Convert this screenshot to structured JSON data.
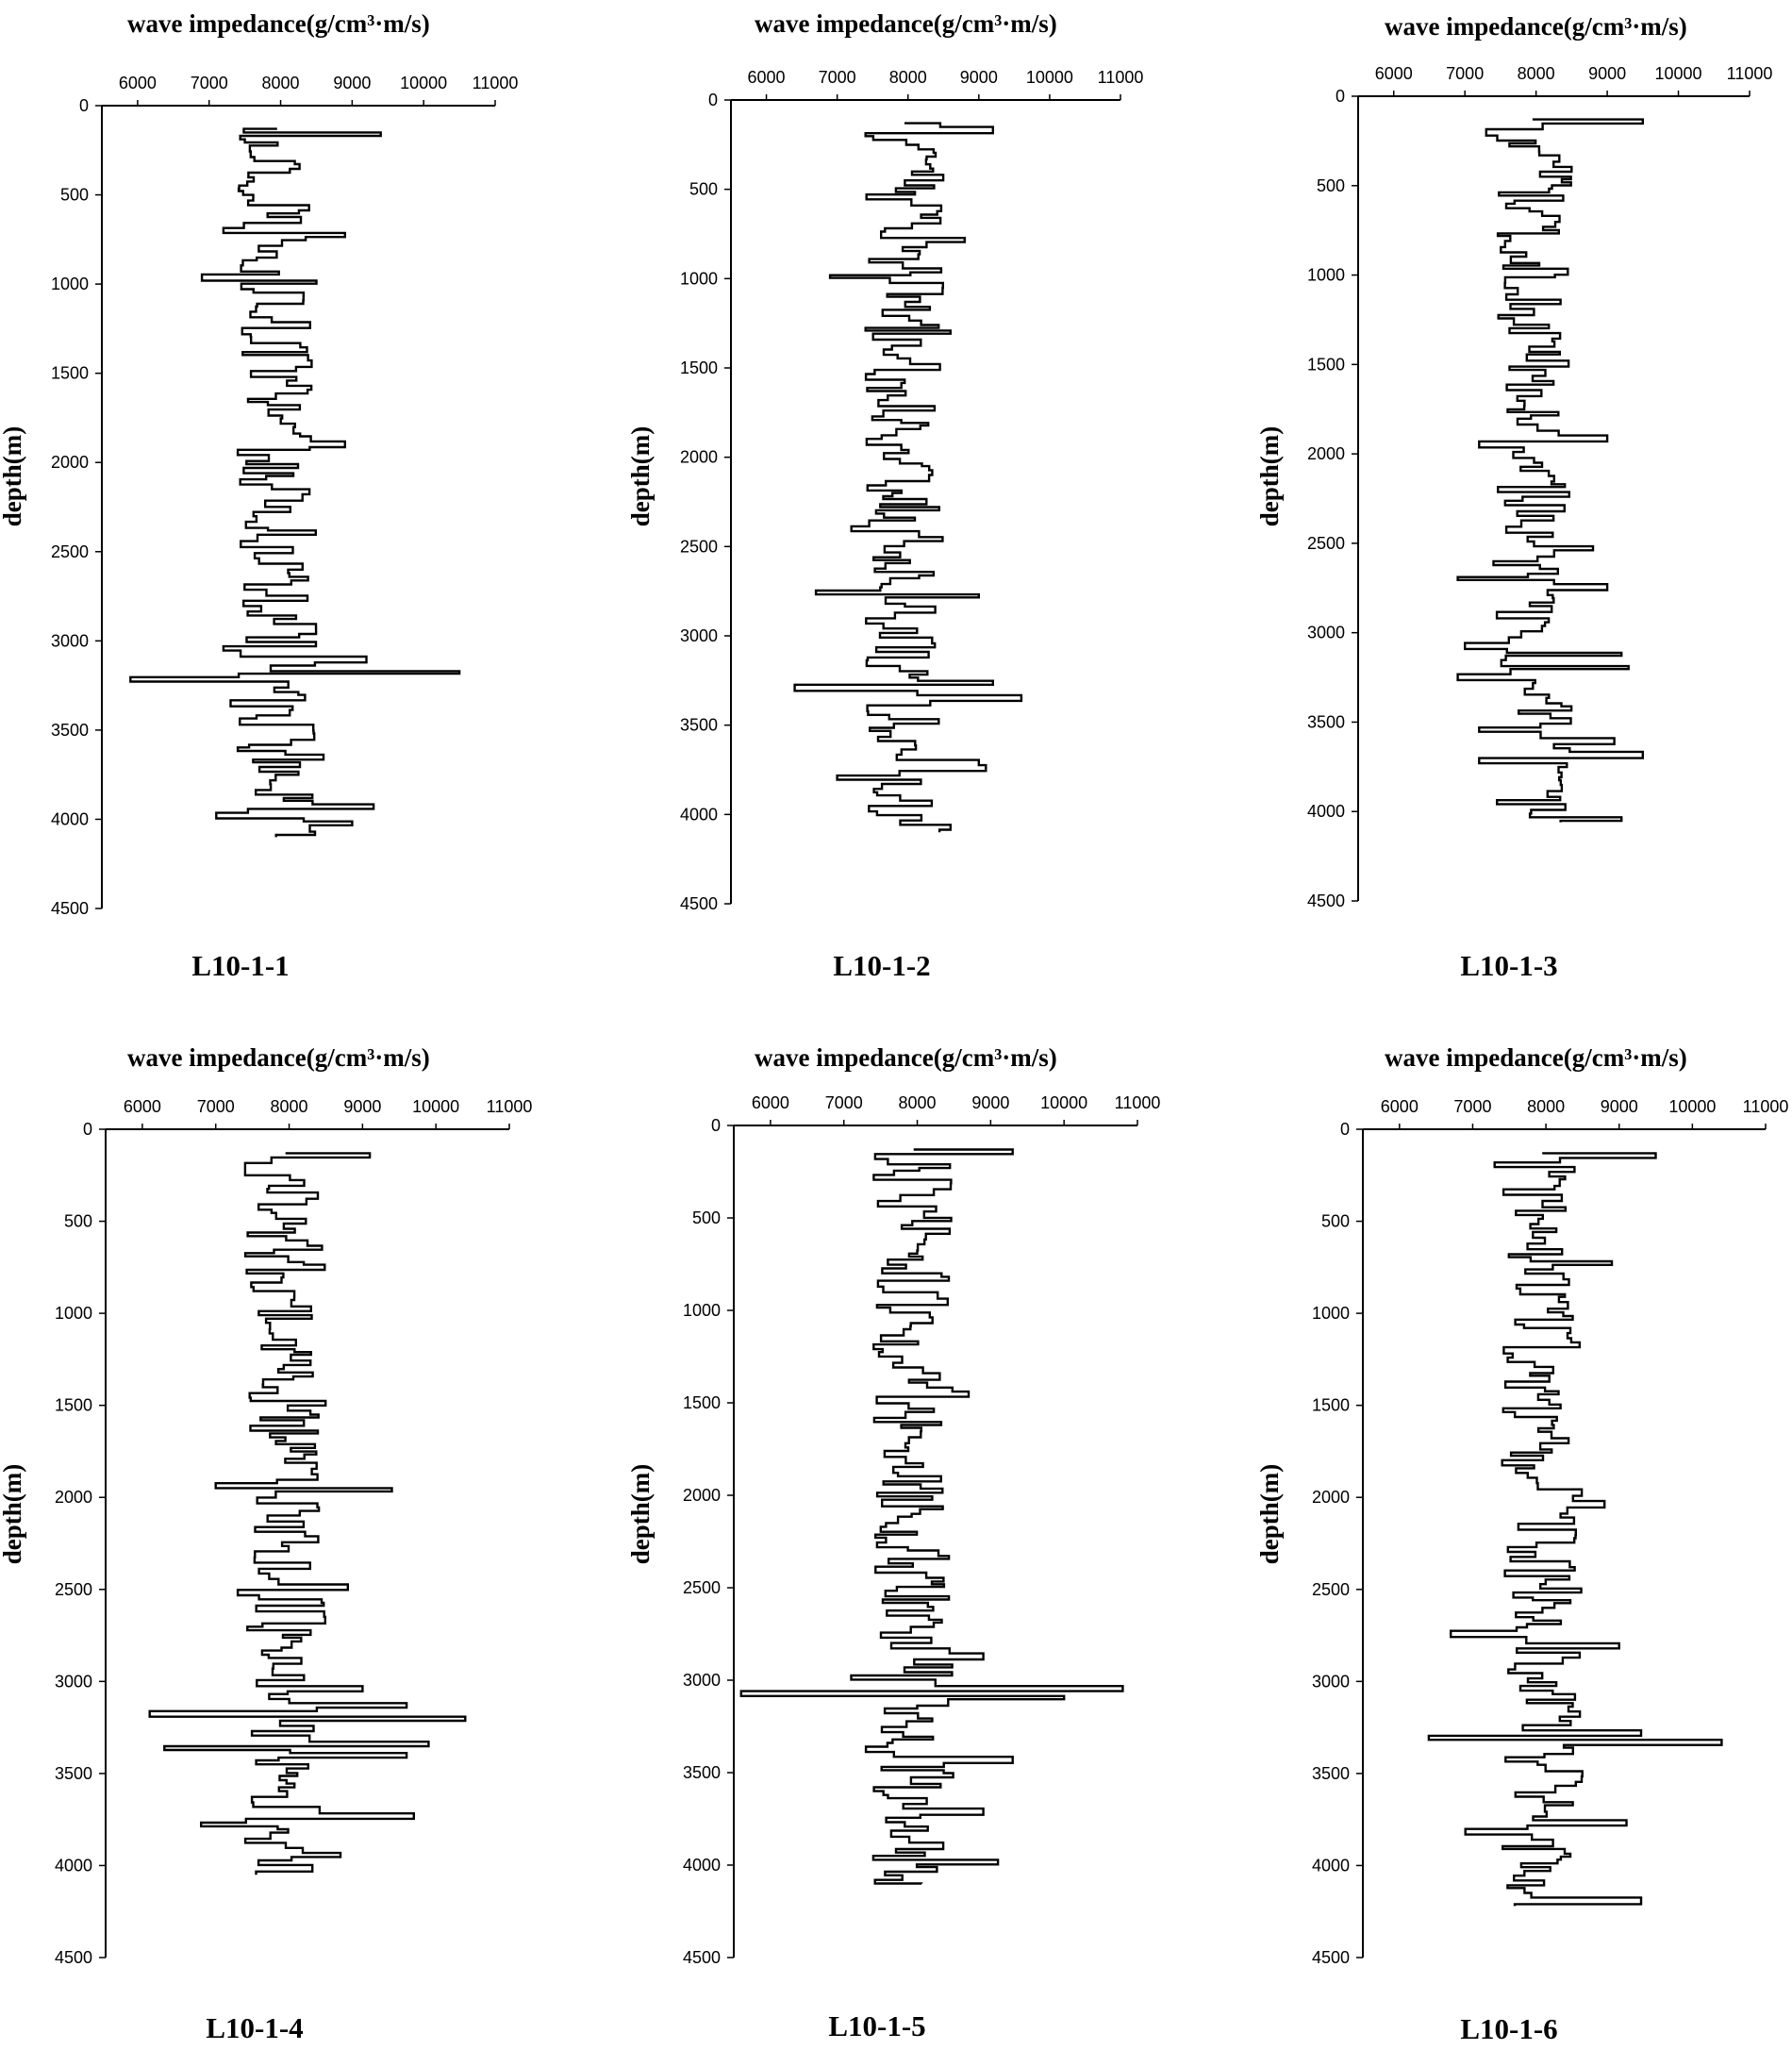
{
  "chart_data": [
    {
      "type": "line",
      "caption": "L10-1-1",
      "title": "wave impedance(g/cm³·m/s)",
      "xlabel": "wave impedance(g/cm³·m/s)",
      "ylabel": "depth(m)",
      "xlim": [
        5500,
        11000
      ],
      "ylim": [
        0,
        4500
      ],
      "xticks": [
        6000,
        7000,
        8000,
        9000,
        10000,
        11000
      ],
      "yticks": [
        0,
        500,
        1000,
        1500,
        2000,
        2500,
        3000,
        3500,
        4000,
        4500
      ],
      "depth_range": [
        130,
        4100
      ],
      "base_value": 7950,
      "spikes": [
        {
          "depth": 150,
          "value": 9400
        },
        {
          "depth": 190,
          "value": 7500
        },
        {
          "depth": 700,
          "value": 7200
        },
        {
          "depth": 730,
          "value": 8900
        },
        {
          "depth": 950,
          "value": 6900
        },
        {
          "depth": 980,
          "value": 8500
        },
        {
          "depth": 1900,
          "value": 8900
        },
        {
          "depth": 1950,
          "value": 7400
        },
        {
          "depth": 3050,
          "value": 7200
        },
        {
          "depth": 3110,
          "value": 9200
        },
        {
          "depth": 3180,
          "value": 10500
        },
        {
          "depth": 3220,
          "value": 5900
        },
        {
          "depth": 3350,
          "value": 7300
        },
        {
          "depth": 3600,
          "value": 7400
        },
        {
          "depth": 3650,
          "value": 8600
        },
        {
          "depth": 3920,
          "value": 9300
        },
        {
          "depth": 3980,
          "value": 7100
        },
        {
          "depth": 4030,
          "value": 9000
        }
      ]
    },
    {
      "type": "line",
      "caption": "L10-1-2",
      "title": "wave impedance(g/cm³·m/s)",
      "xlabel": "wave impedance(g/cm³·m/s)",
      "ylabel": "depth(m)",
      "xlim": [
        5500,
        11000
      ],
      "ylim": [
        0,
        4500
      ],
      "xticks": [
        6000,
        7000,
        8000,
        9000,
        10000,
        11000
      ],
      "yticks": [
        0,
        500,
        1000,
        1500,
        2000,
        2500,
        3000,
        3500,
        4000,
        4500
      ],
      "depth_range": [
        130,
        4100
      ],
      "base_value": 7950,
      "spikes": [
        {
          "depth": 150,
          "value": 9200
        },
        {
          "depth": 190,
          "value": 7400
        },
        {
          "depth": 770,
          "value": 8800
        },
        {
          "depth": 980,
          "value": 6900
        },
        {
          "depth": 1300,
          "value": 8600
        },
        {
          "depth": 2400,
          "value": 7200
        },
        {
          "depth": 2750,
          "value": 6700
        },
        {
          "depth": 2780,
          "value": 9000
        },
        {
          "depth": 3250,
          "value": 9200
        },
        {
          "depth": 3300,
          "value": 6400
        },
        {
          "depth": 3340,
          "value": 9600
        },
        {
          "depth": 3700,
          "value": 9000
        },
        {
          "depth": 3790,
          "value": 7000
        },
        {
          "depth": 3750,
          "value": 9100
        },
        {
          "depth": 4060,
          "value": 8600
        }
      ]
    },
    {
      "type": "line",
      "caption": "L10-1-3",
      "title": "wave impedance(g/cm³·m/s)",
      "xlabel": "wave impedance(g/cm³·m/s)",
      "ylabel": "depth(m)",
      "xlim": [
        5500,
        11000
      ],
      "ylim": [
        0,
        4500
      ],
      "xticks": [
        6000,
        7000,
        8000,
        9000,
        10000,
        11000
      ],
      "yticks": [
        0,
        500,
        1000,
        1500,
        2000,
        2500,
        3000,
        3500,
        4000,
        4500
      ],
      "depth_range": [
        130,
        4060
      ],
      "base_value": 7950,
      "spikes": [
        {
          "depth": 150,
          "value": 9500
        },
        {
          "depth": 190,
          "value": 7300
        },
        {
          "depth": 1920,
          "value": 9000
        },
        {
          "depth": 1950,
          "value": 7200
        },
        {
          "depth": 2520,
          "value": 8800
        },
        {
          "depth": 2700,
          "value": 6900
        },
        {
          "depth": 2740,
          "value": 9000
        },
        {
          "depth": 3080,
          "value": 7000
        },
        {
          "depth": 3120,
          "value": 9200
        },
        {
          "depth": 3200,
          "value": 9300
        },
        {
          "depth": 3240,
          "value": 6900
        },
        {
          "depth": 3550,
          "value": 7200
        },
        {
          "depth": 3600,
          "value": 9100
        },
        {
          "depth": 3680,
          "value": 9500
        },
        {
          "depth": 3720,
          "value": 7200
        },
        {
          "depth": 4040,
          "value": 9200
        }
      ]
    },
    {
      "type": "line",
      "caption": "L10-1-4",
      "title": "wave impedance(g/cm³·m/s)",
      "xlabel": "wave impedance(g/cm³·m/s)",
      "ylabel": "depth(m)",
      "xlim": [
        5500,
        11000
      ],
      "ylim": [
        0,
        4500
      ],
      "xticks": [
        6000,
        7000,
        8000,
        9000,
        10000,
        11000
      ],
      "yticks": [
        0,
        500,
        1000,
        1500,
        2000,
        2500,
        3000,
        3500,
        4000,
        4500
      ],
      "depth_range": [
        130,
        4050
      ],
      "base_value": 7950,
      "spikes": [
        {
          "depth": 150,
          "value": 9100
        },
        {
          "depth": 190,
          "value": 7400
        },
        {
          "depth": 1930,
          "value": 7000
        },
        {
          "depth": 1960,
          "value": 9400
        },
        {
          "depth": 2490,
          "value": 7300
        },
        {
          "depth": 2480,
          "value": 8800
        },
        {
          "depth": 3030,
          "value": 9000
        },
        {
          "depth": 3120,
          "value": 9600
        },
        {
          "depth": 3160,
          "value": 6100
        },
        {
          "depth": 3190,
          "value": 10400
        },
        {
          "depth": 3330,
          "value": 9900
        },
        {
          "depth": 3360,
          "value": 6300
        },
        {
          "depth": 3400,
          "value": 9600
        },
        {
          "depth": 3730,
          "value": 9700
        },
        {
          "depth": 3770,
          "value": 6800
        },
        {
          "depth": 3950,
          "value": 8700
        }
      ]
    },
    {
      "type": "line",
      "caption": "L10-1-5",
      "title": "wave impedance(g/cm³·m/s)",
      "xlabel": "wave impedance(g/cm³·m/s)",
      "ylabel": "depth(m)",
      "xlim": [
        5500,
        11000
      ],
      "ylim": [
        0,
        4500
      ],
      "xticks": [
        6000,
        7000,
        8000,
        9000,
        10000,
        11000
      ],
      "yticks": [
        0,
        500,
        1000,
        1500,
        2000,
        2500,
        3000,
        3500,
        4000,
        4500
      ],
      "depth_range": [
        130,
        4100
      ],
      "base_value": 7950,
      "spikes": [
        {
          "depth": 150,
          "value": 9300
        },
        {
          "depth": 190,
          "value": 7600
        },
        {
          "depth": 1450,
          "value": 8700
        },
        {
          "depth": 2880,
          "value": 8900
        },
        {
          "depth": 2990,
          "value": 7100
        },
        {
          "depth": 3030,
          "value": 10800
        },
        {
          "depth": 3060,
          "value": 5600
        },
        {
          "depth": 3090,
          "value": 10000
        },
        {
          "depth": 3380,
          "value": 7300
        },
        {
          "depth": 3420,
          "value": 9300
        },
        {
          "depth": 3700,
          "value": 8900
        },
        {
          "depth": 3950,
          "value": 7400
        },
        {
          "depth": 3980,
          "value": 9100
        }
      ]
    },
    {
      "type": "line",
      "caption": "L10-1-6",
      "title": "wave impedance(g/cm³·m/s)",
      "xlabel": "wave impedance(g/cm³·m/s)",
      "ylabel": "depth(m)",
      "xlim": [
        5500,
        11000
      ],
      "ylim": [
        0,
        4500
      ],
      "xticks": [
        6000,
        7000,
        8000,
        9000,
        10000,
        11000
      ],
      "yticks": [
        0,
        500,
        1000,
        1500,
        2000,
        2500,
        3000,
        3500,
        4000,
        4500
      ],
      "depth_range": [
        130,
        4220
      ],
      "base_value": 7950,
      "spikes": [
        {
          "depth": 150,
          "value": 9500
        },
        {
          "depth": 190,
          "value": 7300
        },
        {
          "depth": 730,
          "value": 8900
        },
        {
          "depth": 2020,
          "value": 8800
        },
        {
          "depth": 2750,
          "value": 6700
        },
        {
          "depth": 2790,
          "value": 9000
        },
        {
          "depth": 3270,
          "value": 9300
        },
        {
          "depth": 3300,
          "value": 6400
        },
        {
          "depth": 3340,
          "value": 10400
        },
        {
          "depth": 3760,
          "value": 9100
        },
        {
          "depth": 3800,
          "value": 6900
        },
        {
          "depth": 4170,
          "value": 7800
        },
        {
          "depth": 4200,
          "value": 9300
        }
      ]
    }
  ]
}
